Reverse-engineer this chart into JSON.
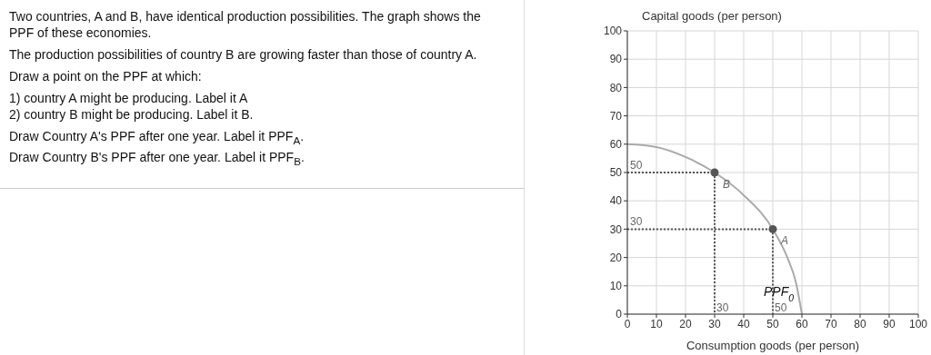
{
  "chart_data": {
    "type": "line",
    "annotations": [
      "Two countries, A and B, have identical production possibilities. The graph shows the PPF of these economies.",
      "The production possibilities of country B are growing faster than those of country A.",
      "Draw a point on the PPF at which:",
      "1) country A might be producing. Label it A",
      "2) country B might be producing. Label it B.",
      "Draw Country A's PPF after one year. Label it PPF$_{A}$.",
      "Draw Country B's PPF after one year. Label it PPF$_{B}$.",
      {
        "text": "50",
        "x": 0,
        "y": 50
      },
      {
        "text": "30",
        "x": 0,
        "y": 30
      },
      {
        "text": "30",
        "x": 30,
        "y": 0
      },
      {
        "text": "50",
        "x": 50,
        "y": 0
      },
      {
        "text": "B",
        "x": 30,
        "y": 50
      },
      {
        "text": "A",
        "x": 50,
        "y": 30
      }
    ],
    "xlabel": "Consumption goods (per person)",
    "ylabel": "Capital goods (per person)",
    "xlim": [
      0,
      100
    ],
    "ylim": [
      0,
      100
    ],
    "xticks": [
      0,
      10,
      20,
      30,
      40,
      50,
      60,
      70,
      80,
      90,
      100
    ],
    "yticks": [
      0,
      10,
      20,
      30,
      40,
      50,
      60,
      70,
      80,
      90,
      100
    ],
    "grid": true,
    "series": [
      {
        "name": "PPF$_{0}$",
        "color": "#aaaaaa",
        "marker": "none",
        "line_style": "solid",
        "x": [
          0,
          10,
          20,
          30,
          40,
          50,
          55,
          58,
          60
        ],
        "values": [
          60,
          59,
          55.5,
          50,
          42,
          30,
          20,
          11,
          0
        ]
      },
      {
        "color": "#555555",
        "marker": "none",
        "line_style": "dotted",
        "x": [
          0,
          30,
          30
        ],
        "values": [
          50,
          50,
          0
        ]
      },
      {
        "color": "#555555",
        "marker": "none",
        "line_style": "dotted",
        "x": [
          0,
          50,
          50
        ],
        "values": [
          30,
          30,
          0
        ]
      },
      {
        "type": "scatter",
        "color": "#555555",
        "marker": "circle",
        "x": [
          30,
          50
        ],
        "values": [
          50,
          30
        ]
      }
    ]
  }
}
